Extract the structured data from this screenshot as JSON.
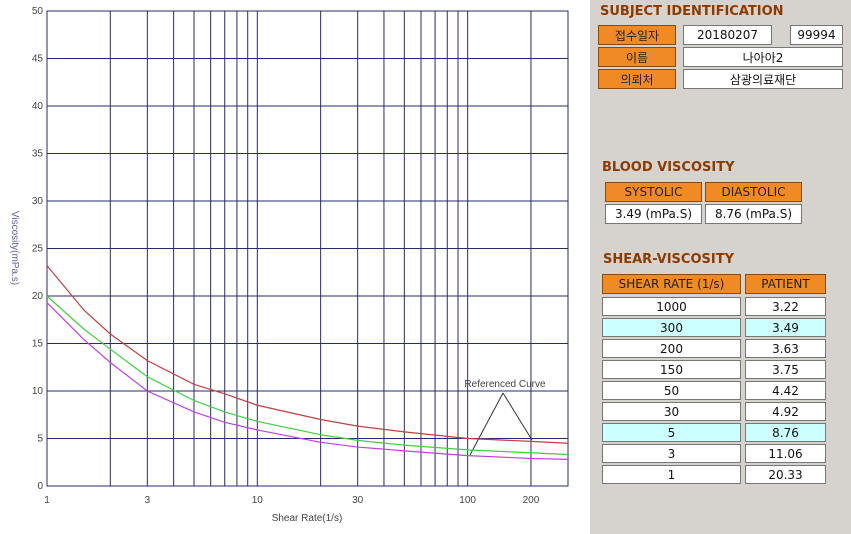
{
  "chart_data": {
    "type": "line",
    "xlabel": "Shear Rate(1/s)",
    "ylabel": "Viscosity(mPa.s)",
    "x": [
      1,
      1.5,
      2,
      3,
      5,
      7,
      10,
      20,
      30,
      50,
      100,
      200,
      300
    ],
    "series": [
      {
        "color": "#c04040",
        "values": [
          23.2,
          18.5,
          16.0,
          13.2,
          10.7,
          9.7,
          8.5,
          7.0,
          6.3,
          5.7,
          5.0,
          4.7,
          4.5
        ]
      },
      {
        "color": "#40d040",
        "values": [
          20.0,
          16.5,
          14.4,
          11.5,
          9.0,
          7.8,
          6.8,
          5.4,
          4.8,
          4.3,
          3.8,
          3.5,
          3.3
        ]
      },
      {
        "color": "#c040e0",
        "values": [
          19.3,
          15.4,
          13.0,
          10.0,
          7.8,
          6.7,
          5.9,
          4.6,
          4.1,
          3.7,
          3.2,
          2.9,
          2.8
        ]
      }
    ],
    "xscale": "log",
    "xlim": [
      1,
      300
    ],
    "xticks": [
      1,
      3,
      10,
      30,
      100,
      200
    ],
    "x_minor_ticks": [
      2,
      4,
      5,
      6,
      7,
      8,
      9,
      20,
      40,
      50,
      60,
      70,
      80,
      90
    ],
    "ylim": [
      0,
      50
    ],
    "yticks": [
      0,
      5,
      10,
      15,
      20,
      25,
      30,
      35,
      40,
      45,
      50
    ],
    "grid": true,
    "annotation": "Referenced Curve"
  },
  "subject_identification": {
    "title": "SUBJECT IDENTIFICATION",
    "fields": [
      {
        "label": "접수일자",
        "value": "20180207",
        "separator": "-",
        "value2": "99994"
      },
      {
        "label": "이름",
        "value": "나아아2"
      },
      {
        "label": "의뢰처",
        "value": "삼광의료재단"
      }
    ]
  },
  "blood_viscosity": {
    "title": "BLOOD VISCOSITY",
    "headers": [
      "SYSTOLIC",
      "DIASTOLIC"
    ],
    "values": [
      "3.49 (mPa.S)",
      "8.76 (mPa.S)"
    ]
  },
  "shear_viscosity": {
    "title": "SHEAR-VISCOSITY",
    "headers": [
      "SHEAR RATE (1/s)",
      "PATIENT"
    ],
    "rows": [
      [
        "1000",
        "3.22"
      ],
      [
        "300",
        "3.49"
      ],
      [
        "200",
        "3.63"
      ],
      [
        "150",
        "3.75"
      ],
      [
        "50",
        "4.42"
      ],
      [
        "30",
        "4.92"
      ],
      [
        "5",
        "8.76"
      ],
      [
        "3",
        "11.06"
      ],
      [
        "1",
        "20.33"
      ]
    ],
    "highlight_rows": [
      1,
      6
    ]
  }
}
